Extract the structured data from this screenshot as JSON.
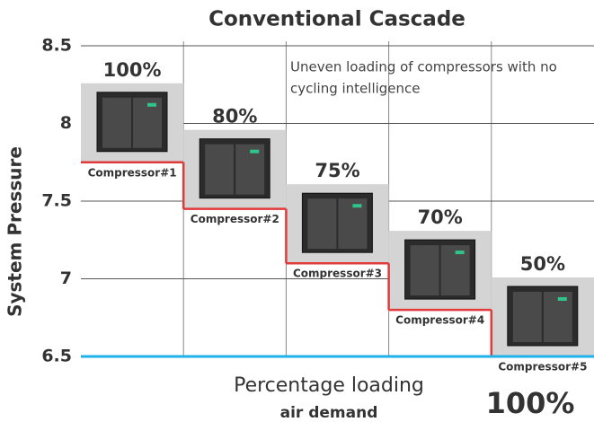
{
  "chart_data": {
    "type": "step",
    "title": "Conventional Cascade",
    "y_label": "System Pressure",
    "x_label": "Percentage loading",
    "x_sublabel": "air demand",
    "total_label": "100%",
    "annotation": [
      "Uneven loading of compressors with no",
      "cycling intelligence"
    ],
    "categories": [
      "Compressor#1",
      "Compressor#2",
      "Compressor#3",
      "Compressor#4",
      "Compressor#5"
    ],
    "values": [
      7.75,
      7.45,
      7.1,
      6.8,
      6.5
    ],
    "loading_labels": [
      "100%",
      "80%",
      "75%",
      "70%",
      "50%"
    ],
    "color": "#e03a3a",
    "baseline_color": "#1fb2ea",
    "ylim": [
      6.5,
      8.5
    ],
    "yticks": [
      6.5,
      7.0,
      7.5,
      8.0,
      8.5
    ],
    "grid": true
  }
}
